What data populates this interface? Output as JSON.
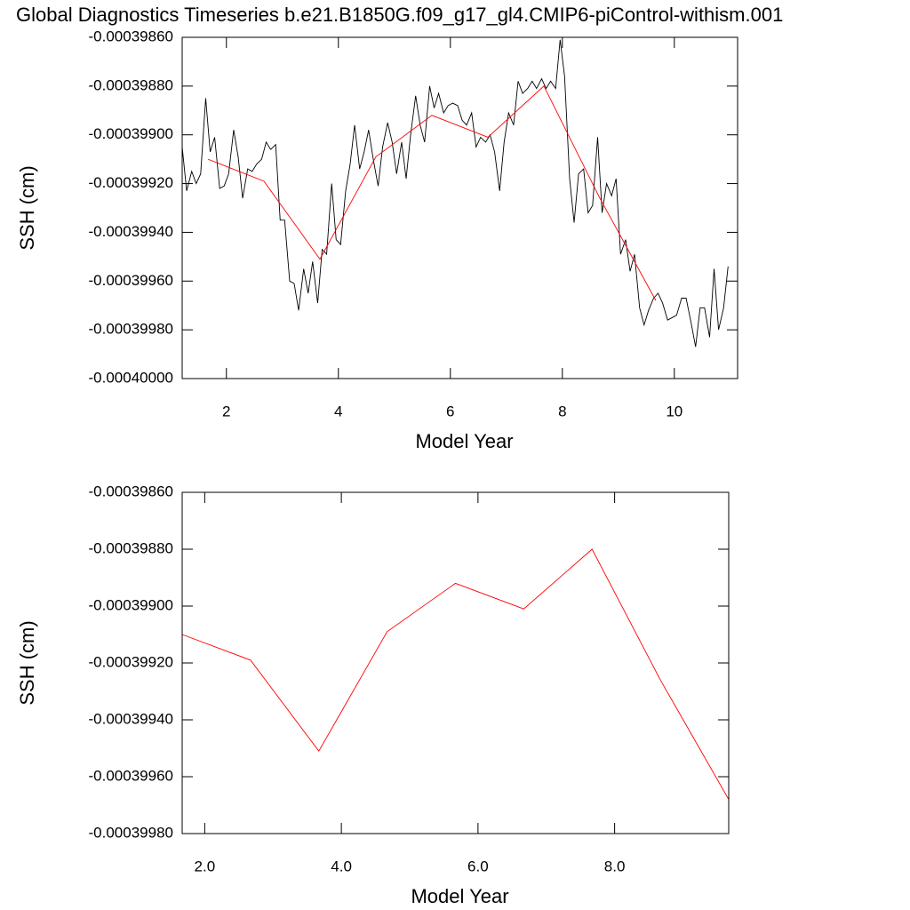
{
  "chart_data": [
    {
      "type": "line",
      "title": "Global Diagnostics Timeseries b.e21.B1850G.f09_g17_gl4.CMIP6-piControl-withism.001",
      "x_label": "Model Year",
      "y_label": "SSH (cm)",
      "xlim": [
        1.21,
        11.13
      ],
      "xticks": [
        2,
        4,
        6,
        8,
        10
      ],
      "ylim": [
        -0.0004,
        -0.0003986
      ],
      "yticks": [
        {
          "value": -0.0004,
          "label": "-0.00040000"
        },
        {
          "value": -0.0003998,
          "label": "-0.00039980"
        },
        {
          "value": -0.0003996,
          "label": "-0.00039960"
        },
        {
          "value": -0.0003994,
          "label": "-0.00039940"
        },
        {
          "value": -0.0003992,
          "label": "-0.00039920"
        },
        {
          "value": -0.000399,
          "label": "-0.00039900"
        },
        {
          "value": -0.0003988,
          "label": "-0.00039880"
        },
        {
          "value": -0.0003986,
          "label": "-0.00039860"
        }
      ],
      "series": [
        {
          "color": "#000000",
          "x": [
            1.21,
            1.29,
            1.38,
            1.46,
            1.54,
            1.63,
            1.71,
            1.79,
            1.88,
            1.96,
            2.04,
            2.13,
            2.21,
            2.29,
            2.38,
            2.46,
            2.54,
            2.63,
            2.71,
            2.79,
            2.88,
            2.96,
            3.04,
            3.13,
            3.21,
            3.29,
            3.38,
            3.46,
            3.54,
            3.63,
            3.71,
            3.79,
            3.88,
            3.96,
            4.04,
            4.13,
            4.21,
            4.29,
            4.38,
            4.46,
            4.54,
            4.63,
            4.71,
            4.79,
            4.88,
            4.96,
            5.04,
            5.13,
            5.21,
            5.29,
            5.38,
            5.46,
            5.54,
            5.63,
            5.71,
            5.79,
            5.88,
            5.96,
            6.04,
            6.13,
            6.21,
            6.29,
            6.38,
            6.46,
            6.54,
            6.63,
            6.71,
            6.79,
            6.88,
            6.96,
            7.04,
            7.13,
            7.21,
            7.29,
            7.38,
            7.46,
            7.54,
            7.63,
            7.71,
            7.79,
            7.88,
            7.96,
            8.04,
            8.13,
            8.21,
            8.29,
            8.38,
            8.46,
            8.54,
            8.63,
            8.71,
            8.79,
            8.88,
            8.96,
            9.04,
            9.13,
            9.21,
            9.29,
            9.38,
            9.46,
            9.54,
            9.63,
            9.71,
            9.79,
            9.88,
            9.96,
            10.04,
            10.13,
            10.21,
            10.29,
            10.38,
            10.46,
            10.54,
            10.63,
            10.71,
            10.79,
            10.88,
            10.96
          ],
          "values": [
            -0.00039905,
            -0.00039923,
            -0.00039915,
            -0.0003992,
            -0.00039916,
            -0.00039885,
            -0.00039907,
            -0.00039901,
            -0.00039922,
            -0.00039921,
            -0.00039916,
            -0.00039898,
            -0.00039909,
            -0.00039926,
            -0.00039914,
            -0.00039915,
            -0.00039912,
            -0.0003991,
            -0.00039903,
            -0.00039906,
            -0.00039904,
            -0.00039935,
            -0.00039935,
            -0.0003996,
            -0.00039961,
            -0.00039972,
            -0.00039955,
            -0.00039965,
            -0.00039952,
            -0.00039969,
            -0.00039947,
            -0.00039949,
            -0.0003992,
            -0.00039943,
            -0.00039945,
            -0.00039923,
            -0.00039912,
            -0.00039896,
            -0.00039914,
            -0.00039907,
            -0.00039898,
            -0.00039911,
            -0.00039921,
            -0.00039905,
            -0.00039895,
            -0.00039903,
            -0.00039916,
            -0.00039903,
            -0.00039918,
            -0.000399,
            -0.00039884,
            -0.00039896,
            -0.00039903,
            -0.0003988,
            -0.00039889,
            -0.00039883,
            -0.00039891,
            -0.00039888,
            -0.00039887,
            -0.00039888,
            -0.00039894,
            -0.00039896,
            -0.00039891,
            -0.00039905,
            -0.00039901,
            -0.00039903,
            -0.000399,
            -0.00039907,
            -0.00039923,
            -0.00039903,
            -0.00039891,
            -0.00039896,
            -0.00039878,
            -0.00039883,
            -0.00039881,
            -0.00039878,
            -0.00039881,
            -0.00039877,
            -0.00039881,
            -0.00039878,
            -0.00039881,
            -0.00039861,
            -0.00039876,
            -0.00039918,
            -0.00039936,
            -0.00039916,
            -0.00039914,
            -0.00039932,
            -0.00039929,
            -0.00039901,
            -0.00039932,
            -0.0003992,
            -0.00039925,
            -0.00039918,
            -0.00039949,
            -0.00039943,
            -0.00039956,
            -0.00039949,
            -0.00039971,
            -0.00039978,
            -0.00039972,
            -0.00039967,
            -0.00039965,
            -0.00039969,
            -0.00039976,
            -0.00039975,
            -0.00039974,
            -0.00039967,
            -0.00039967,
            -0.00039976,
            -0.00039987,
            -0.00039971,
            -0.00039971,
            -0.00039983,
            -0.00039955,
            -0.0003998,
            -0.00039971,
            -0.00039954
          ]
        },
        {
          "color": "#ff0000",
          "x": [
            1.67,
            2.67,
            3.67,
            4.67,
            5.67,
            6.67,
            7.67,
            8.67,
            9.67
          ],
          "values": [
            -0.0003991,
            -0.00039919,
            -0.00039951,
            -0.00039909,
            -0.00039892,
            -0.00039901,
            -0.0003988,
            -0.00039926,
            -0.00039968
          ]
        }
      ]
    },
    {
      "type": "line",
      "x_label": "Model Year",
      "y_label": "SSH (cm)",
      "xlim": [
        1.67,
        9.67
      ],
      "xticks": [
        {
          "value": 2,
          "label": "2.0"
        },
        {
          "value": 4,
          "label": "4.0"
        },
        {
          "value": 6,
          "label": "6.0"
        },
        {
          "value": 8,
          "label": "8.0"
        }
      ],
      "ylim": [
        -0.0003998,
        -0.0003986
      ],
      "yticks": [
        {
          "value": -0.0003998,
          "label": "-0.00039980"
        },
        {
          "value": -0.0003996,
          "label": "-0.00039960"
        },
        {
          "value": -0.0003994,
          "label": "-0.00039940"
        },
        {
          "value": -0.0003992,
          "label": "-0.00039920"
        },
        {
          "value": -0.000399,
          "label": "-0.00039900"
        },
        {
          "value": -0.0003988,
          "label": "-0.00039880"
        },
        {
          "value": -0.0003986,
          "label": "-0.00039860"
        }
      ],
      "series": [
        {
          "color": "#ff0000",
          "x": [
            1.67,
            2.67,
            3.67,
            4.67,
            5.67,
            6.67,
            7.67,
            8.67,
            9.67
          ],
          "values": [
            -0.0003991,
            -0.00039919,
            -0.00039951,
            -0.00039909,
            -0.00039892,
            -0.00039901,
            -0.0003988,
            -0.00039926,
            -0.00039968
          ]
        }
      ]
    }
  ]
}
